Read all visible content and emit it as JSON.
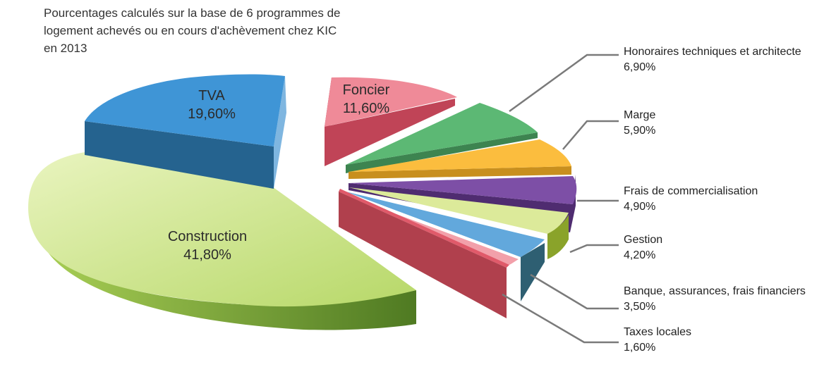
{
  "chart_data": {
    "type": "pie",
    "title_lines": [
      "Pourcentages calculés sur la base de 6 programmes de",
      "logement achevés ou en cours d'achèvement chez KIC",
      "en 2013"
    ],
    "slices": [
      {
        "key": "foncier",
        "label": "Foncier",
        "value": 11.6,
        "value_label": "11,60%",
        "color": "#e8576b",
        "dark": "#a8384a"
      },
      {
        "key": "honoraires",
        "label": "Honoraires techniques et architecte",
        "value": 6.9,
        "value_label": "6,90%",
        "color": "#5cb874",
        "dark": "#3d8450"
      },
      {
        "key": "marge",
        "label": "Marge",
        "value": 5.9,
        "value_label": "5,90%",
        "color": "#fbbd3e",
        "dark": "#c88f1e"
      },
      {
        "key": "frais_commercialisation",
        "label": "Frais de commercialisation",
        "value": 4.9,
        "value_label": "4,90%",
        "color": "#7d4fa6",
        "dark": "#4f2c70"
      },
      {
        "key": "gestion",
        "label": "Gestion",
        "value": 4.2,
        "value_label": "4,20%",
        "color": "#dcea9a",
        "dark": "#8aa32a"
      },
      {
        "key": "banque",
        "label": "Banque, assurances, frais financiers",
        "value": 3.5,
        "value_label": "3,50%",
        "color": "#62a8dc",
        "dark": "#2e5f72"
      },
      {
        "key": "taxes_locales",
        "label": "Taxes locales",
        "value": 1.6,
        "value_label": "1,60%",
        "color": "#f2a0aa",
        "dark": "#c06a78"
      },
      {
        "key": "construction",
        "label": "Construction",
        "value": 41.8,
        "value_label": "41,80%",
        "color": "#c5e07a",
        "dark": "#5f8a2a"
      },
      {
        "key": "tva",
        "label": "TVA",
        "value": 19.6,
        "value_label": "19,60%",
        "color": "#3f95d6",
        "dark": "#1d5a8e"
      }
    ],
    "legend": "leader-lines"
  }
}
